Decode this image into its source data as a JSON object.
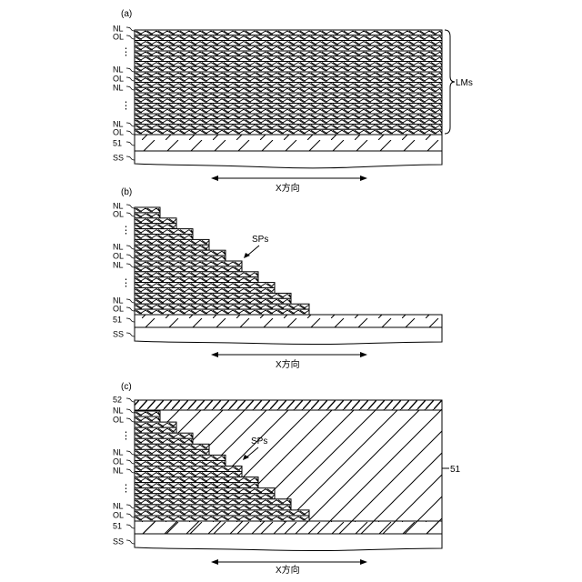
{
  "panels": [
    {
      "label": "(a)",
      "layer_labels": [
        "NL",
        "OL",
        "⋮",
        "NL",
        "OL",
        "NL",
        "⋮",
        "NL",
        "OL",
        "51",
        "SS"
      ],
      "brace_label": "LMs",
      "axis_label": "X方向"
    },
    {
      "label": "(b)",
      "layer_labels": [
        "NL",
        "OL",
        "⋮",
        "NL",
        "OL",
        "NL",
        "⋮",
        "NL",
        "OL",
        "51",
        "SS"
      ],
      "stair_label": "SPs",
      "axis_label": "X方向"
    },
    {
      "label": "(c)",
      "layer_labels": [
        "52",
        "NL",
        "OL",
        "⋮",
        "NL",
        "OL",
        "NL",
        "⋮",
        "NL",
        "OL",
        "51",
        "SS"
      ],
      "stair_label": "SPs",
      "side_label": "51",
      "axis_label": "X方向"
    }
  ]
}
